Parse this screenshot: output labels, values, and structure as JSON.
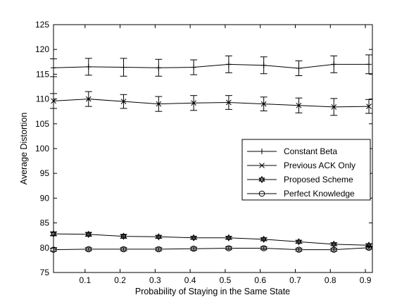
{
  "chart_data": {
    "type": "line",
    "title": "",
    "xlabel": "Probability of Staying in the Same State",
    "ylabel": "Average Distortion",
    "xlim": [
      0.01,
      0.92
    ],
    "ylim": [
      75,
      125
    ],
    "xticks": [
      0.1,
      0.2,
      0.3,
      0.4,
      0.5,
      0.6,
      0.7,
      0.8,
      0.9
    ],
    "yticks": [
      75,
      80,
      85,
      90,
      95,
      100,
      105,
      110,
      115,
      120,
      125
    ],
    "grid": false,
    "legend_position": "center-right",
    "x": [
      0.01,
      0.11,
      0.21,
      0.31,
      0.41,
      0.51,
      0.61,
      0.71,
      0.81,
      0.91
    ],
    "series": [
      {
        "name": "Constant Beta",
        "marker": "plus",
        "values": [
          116.3,
          116.5,
          116.4,
          116.3,
          116.4,
          117.0,
          116.8,
          116.2,
          117.0,
          117.0
        ],
        "error": [
          1.8,
          1.7,
          1.8,
          1.7,
          1.5,
          1.7,
          1.7,
          1.5,
          1.7,
          1.9
        ]
      },
      {
        "name": "Previous ACK Only",
        "marker": "x",
        "values": [
          109.6,
          110.0,
          109.5,
          109.0,
          109.2,
          109.3,
          109.0,
          108.7,
          108.4,
          108.5
        ],
        "error": [
          1.5,
          1.5,
          1.4,
          1.5,
          1.5,
          1.4,
          1.4,
          1.5,
          1.7,
          1.4
        ]
      },
      {
        "name": "Proposed Scheme",
        "marker": "star",
        "values": [
          82.8,
          82.7,
          82.3,
          82.2,
          82.0,
          82.0,
          81.7,
          81.2,
          80.7,
          80.5
        ],
        "error": [
          0.4,
          0.4,
          0.4,
          0.3,
          0.3,
          0.3,
          0.3,
          0.3,
          0.3,
          0.3
        ]
      },
      {
        "name": "Perfect Knowledge",
        "marker": "circle",
        "values": [
          79.6,
          79.7,
          79.7,
          79.7,
          79.8,
          79.9,
          79.9,
          79.6,
          79.6,
          80.0
        ],
        "error": [
          0.3,
          0.3,
          0.3,
          0.3,
          0.3,
          0.3,
          0.3,
          0.3,
          0.3,
          0.3
        ]
      }
    ]
  }
}
